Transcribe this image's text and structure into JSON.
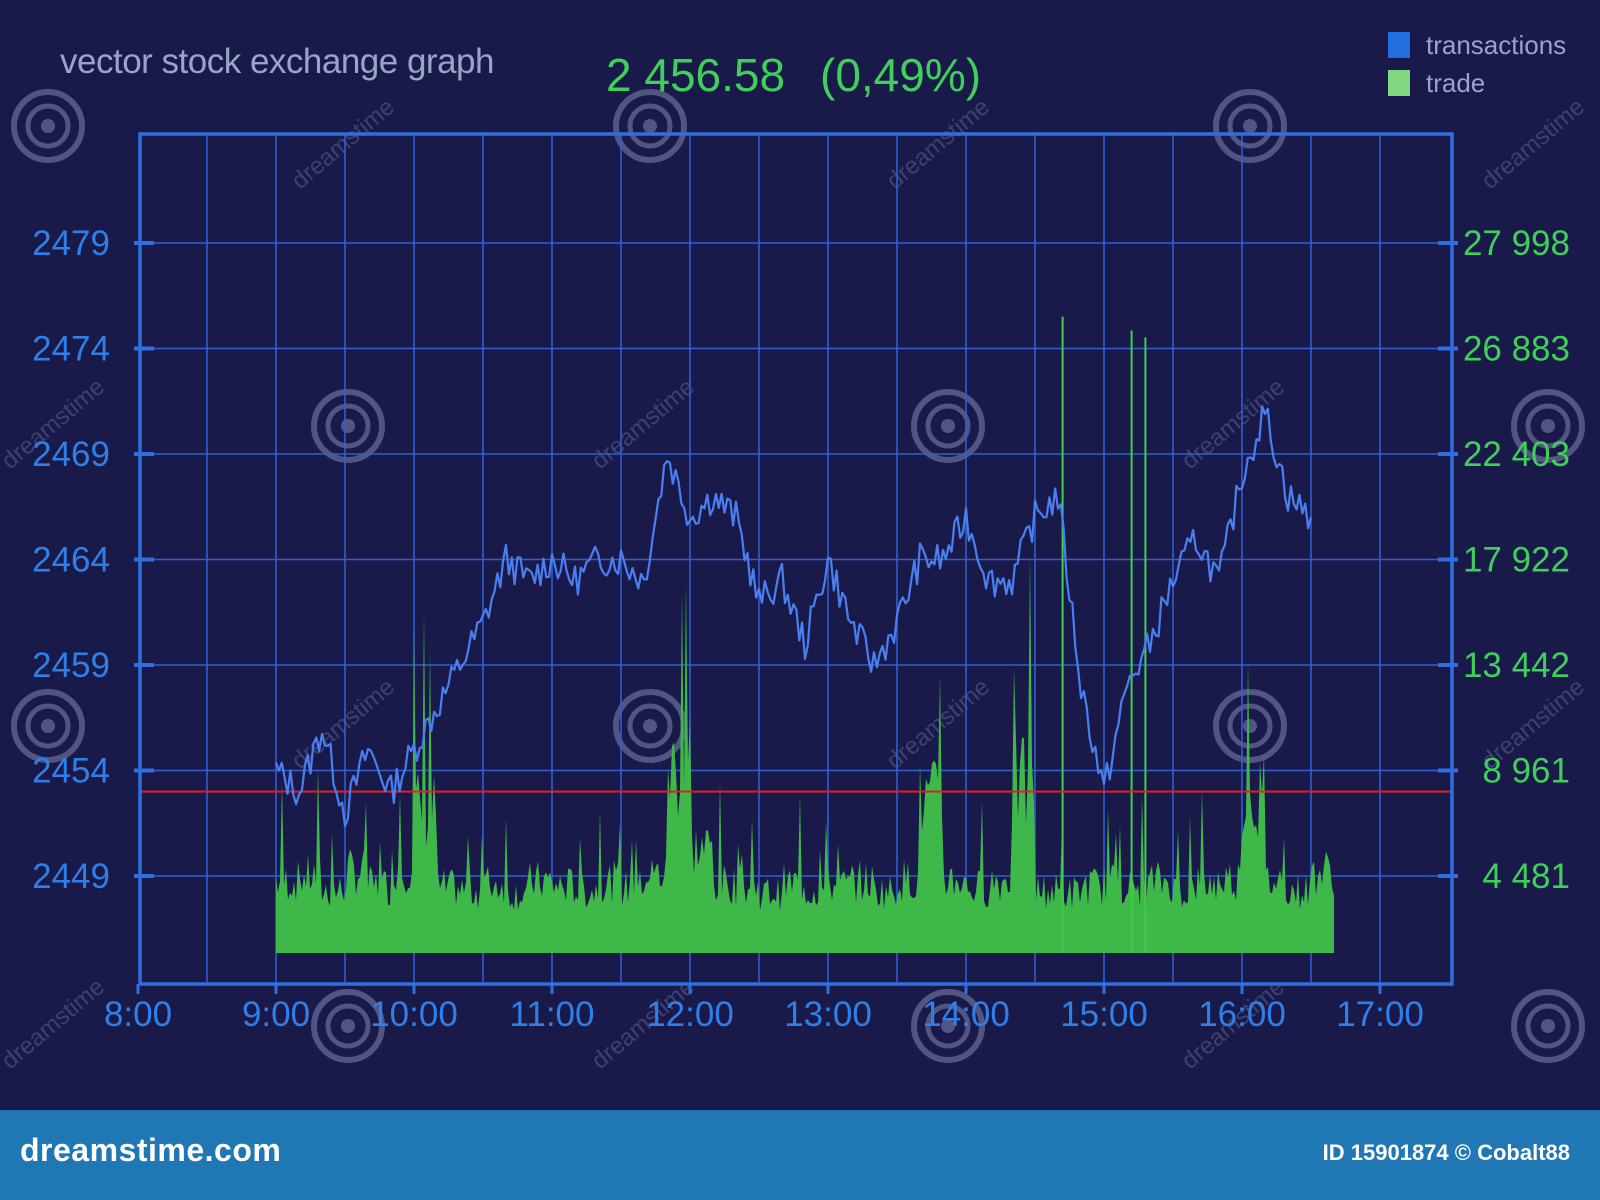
{
  "header": {
    "title": "vector stock exchange graph",
    "price": "2 456.58",
    "change": "(0,49%)"
  },
  "legend": [
    {
      "label": "transactions",
      "color": "#1f6fdf"
    },
    {
      "label": "trade",
      "color": "#7fd87f"
    }
  ],
  "chart_data": {
    "type": "line",
    "x_ticks": [
      "8:00",
      "9:00",
      "10:00",
      "11:00",
      "12:00",
      "13:00",
      "14:00",
      "15:00",
      "16:00",
      "17:00"
    ],
    "y_left_ticks": [
      "2479",
      "2474",
      "2469",
      "2464",
      "2459",
      "2454",
      "2449"
    ],
    "y_right_ticks": [
      "27 998",
      "26 883",
      "22 403",
      "17 922",
      "13 442",
      "8 961",
      "4 481"
    ],
    "xlim": [
      "8:00",
      "17:30"
    ],
    "reference_line": {
      "value": 2453,
      "color": "#e02020"
    },
    "grid": true,
    "series": [
      {
        "name": "transactions",
        "type": "line",
        "color": "#4a7ff0",
        "x": [
          "9:00",
          "9:10",
          "9:20",
          "9:30",
          "9:40",
          "9:50",
          "10:00",
          "10:10",
          "10:20",
          "10:30",
          "10:40",
          "10:50",
          "11:00",
          "11:10",
          "11:20",
          "11:30",
          "11:40",
          "11:50",
          "12:00",
          "12:10",
          "12:20",
          "12:30",
          "12:40",
          "12:50",
          "13:00",
          "13:10",
          "13:20",
          "13:30",
          "13:40",
          "13:50",
          "14:00",
          "14:10",
          "14:20",
          "14:30",
          "14:40",
          "14:50",
          "15:00",
          "15:10",
          "15:20",
          "15:30",
          "15:40",
          "15:50",
          "16:00",
          "16:10",
          "16:20",
          "16:30"
        ],
        "values": [
          2454,
          2453,
          2456,
          2452,
          2455,
          2453,
          2455,
          2457,
          2459,
          2461,
          2464,
          2463,
          2464,
          2463,
          2464,
          2464,
          2463,
          2469,
          2466,
          2467,
          2466,
          2462,
          2463,
          2460,
          2464,
          2461,
          2459,
          2461,
          2464,
          2464,
          2466,
          2463,
          2463,
          2466,
          2467,
          2458,
          2453,
          2458,
          2460,
          2463,
          2465,
          2463,
          2468,
          2471,
          2467,
          2466
        ]
      },
      {
        "name": "trade",
        "type": "area",
        "color": "#3fb84a",
        "x": [
          "9:00",
          "9:10",
          "9:20",
          "9:30",
          "9:40",
          "9:50",
          "10:00",
          "10:10",
          "10:20",
          "10:30",
          "10:40",
          "10:50",
          "11:00",
          "11:10",
          "11:20",
          "11:30",
          "11:40",
          "11:50",
          "12:00",
          "12:10",
          "12:20",
          "12:30",
          "12:40",
          "12:50",
          "13:00",
          "13:10",
          "13:20",
          "13:30",
          "13:40",
          "13:50",
          "14:00",
          "14:10",
          "14:20",
          "14:30",
          "14:40",
          "14:50",
          "15:00",
          "15:10",
          "15:20",
          "15:30",
          "15:40",
          "15:50",
          "16:00",
          "16:10",
          "16:20",
          "16:30"
        ],
        "values": [
          3100,
          3300,
          2700,
          3500,
          2900,
          3700,
          6200,
          2800,
          2700,
          3000,
          2600,
          3100,
          2900,
          2700,
          3100,
          2800,
          3400,
          8000,
          4500,
          3000,
          2800,
          2600,
          3000,
          2700,
          2900,
          3100,
          2700,
          3200,
          6500,
          3200,
          2800,
          3100,
          7200,
          2700,
          2600,
          2900,
          3000,
          2800,
          3100,
          2700,
          3000,
          3200,
          6800,
          3100,
          2700,
          3500
        ]
      }
    ],
    "trade_spikes": [
      {
        "x": "14:42",
        "value": 27500
      },
      {
        "x": "15:12",
        "value": 26900
      },
      {
        "x": "15:18",
        "value": 26600
      }
    ]
  },
  "watermark": {
    "text": "dreamstime"
  },
  "footer": {
    "brand": "dreamstime.com",
    "id_line": "ID 15901874 © Cobalt88"
  }
}
